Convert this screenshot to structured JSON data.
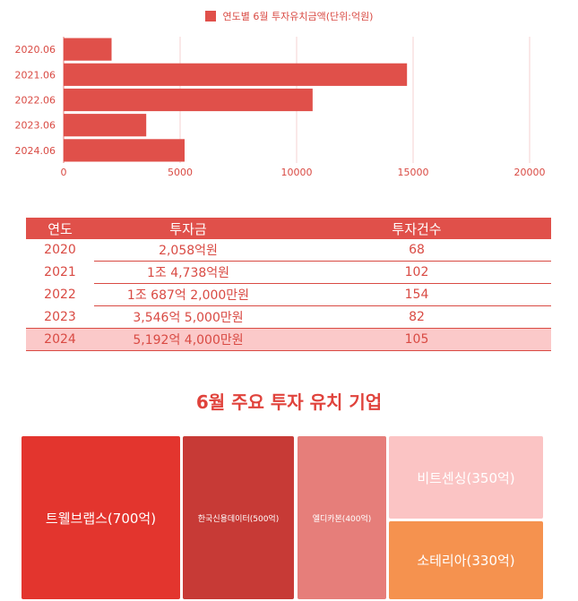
{
  "legend": {
    "label": "연도별 6월 투자유치금액(단위:억원)",
    "color": "#e0504a"
  },
  "chart_data": {
    "type": "bar",
    "orientation": "horizontal",
    "categories": [
      "2020.06",
      "2021.06",
      "2022.06",
      "2023.06",
      "2024.06"
    ],
    "values": [
      2058,
      14738,
      10687,
      3546,
      5192
    ],
    "xlim": [
      0,
      20000
    ],
    "x_ticks": [
      "0",
      "5000",
      "10000",
      "15000",
      "20000"
    ],
    "grid": true,
    "legend_position": "top-center",
    "bar_color": "#e0504a"
  },
  "table": {
    "headers": [
      "연도",
      "투자금",
      "투자건수"
    ],
    "rows": [
      [
        "2020",
        "2,058억원",
        "68"
      ],
      [
        "2021",
        "1조 4,738억원",
        "102"
      ],
      [
        "2022",
        "1조 687억 2,000만원",
        "154"
      ],
      [
        "2023",
        "3,546억 5,000만원",
        "82"
      ],
      [
        "2024",
        "5,192억 4,000만원",
        "105"
      ]
    ],
    "header_color": "#e0504a",
    "highlight_color": "#fbc9c9"
  },
  "section_title": "6월 주요 투자 유치 기업",
  "treemap": [
    {
      "label": "트웰브랩스(700억)",
      "value": 700,
      "color": "#e3352e"
    },
    {
      "label": "한국신용데이터(500억)",
      "value": 500,
      "color": "#c73a36"
    },
    {
      "label": "엘디카본(400억)",
      "value": 400,
      "color": "#e67e7a"
    },
    {
      "label": "비트센싱(350억)",
      "value": 350,
      "color": "#fbc4c4"
    },
    {
      "label": "소테리아(330억)",
      "value": 330,
      "color": "#f5924f"
    }
  ]
}
